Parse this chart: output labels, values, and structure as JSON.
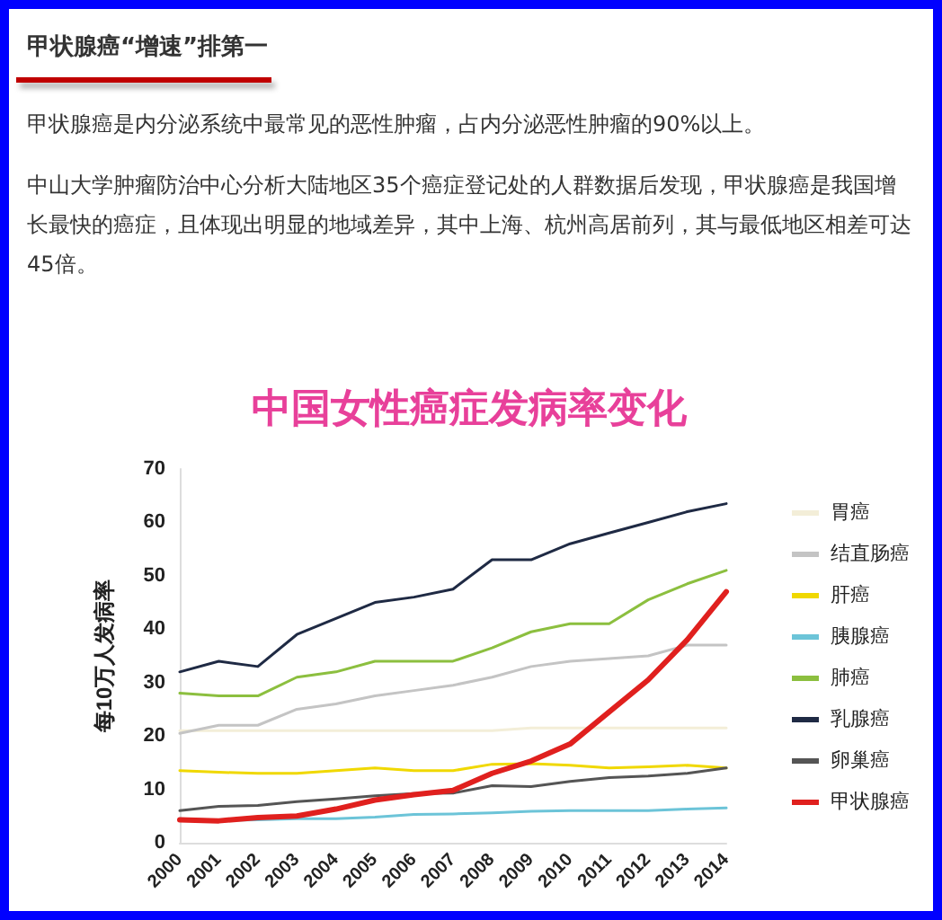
{
  "chart_data": {
    "type": "line",
    "title": "中国女性癌症发病率变化",
    "ylabel": "每10万人发病率",
    "annotations": [
      "甲状腺癌“增速”排第一",
      "甲状腺癌是内分泌系统中最常见的恶性肿瘤，占内分泌恶性肿瘤的90%以上。",
      "中山大学肿瘤防治中心分析大陆地区35个癌症登记处的人群数据后发现，甲状腺癌是我国增长最快的癌症，且体现出明显的地域差异，其中上海、杭州高居前列，其与最低地区相差可达45倍。"
    ],
    "categories": [
      "2000",
      "2001",
      "2002",
      "2003",
      "2004",
      "2005",
      "2006",
      "2007",
      "2008",
      "2009",
      "2010",
      "2011",
      "2012",
      "2013",
      "2014"
    ],
    "series": [
      {
        "name": "胃癌",
        "color": "#f3eed8",
        "values": [
          21,
          21,
          21,
          21,
          21,
          21,
          21,
          21,
          21,
          21.5,
          21.5,
          21.5,
          21.5,
          21.5,
          21.5
        ]
      },
      {
        "name": "结直肠癌",
        "color": "#c4c4c4",
        "values": [
          20.5,
          22,
          22,
          25,
          26,
          27.5,
          28.5,
          29.5,
          31,
          33,
          34,
          34.5,
          35,
          37,
          37
        ]
      },
      {
        "name": "肝癌",
        "color": "#f0d800",
        "values": [
          13.5,
          13.2,
          13,
          13,
          13.5,
          14,
          13.5,
          13.5,
          14.7,
          14.8,
          14.5,
          14,
          14.2,
          14.5,
          14
        ]
      },
      {
        "name": "胰腺癌",
        "color": "#6cc4d8",
        "values": [
          4.5,
          4.2,
          4.3,
          4.5,
          4.5,
          4.8,
          5.3,
          5.4,
          5.6,
          5.9,
          6,
          6,
          6,
          6.3,
          6.5
        ]
      },
      {
        "name": "肺癌",
        "color": "#8cbf3f",
        "values": [
          28,
          27.5,
          27.5,
          31,
          32,
          34,
          34,
          34,
          36.5,
          39.5,
          41,
          41,
          45.5,
          48.5,
          51
        ]
      },
      {
        "name": "乳腺癌",
        "color": "#1f2a44",
        "values": [
          32,
          34,
          33,
          39,
          42,
          45,
          46,
          47.5,
          53,
          53,
          56,
          58,
          60,
          62,
          63.5
        ]
      },
      {
        "name": "卵巢癌",
        "color": "#555555",
        "values": [
          6,
          6.8,
          7,
          7.7,
          8.2,
          8.8,
          9.2,
          9.3,
          10.7,
          10.5,
          11.5,
          12.2,
          12.5,
          13,
          14
        ]
      },
      {
        "name": "甲状腺癌",
        "color": "#e0201e",
        "values": [
          4.3,
          4.1,
          4.7,
          5,
          6.3,
          8,
          9,
          9.8,
          13,
          15.3,
          18.5,
          24.5,
          30.5,
          38,
          47
        ]
      }
    ],
    "ylim": [
      0,
      70
    ],
    "yticks": [
      0,
      10,
      20,
      30,
      40,
      50,
      60,
      70
    ],
    "grid": false,
    "legend": "right",
    "marker": "none",
    "line_style": "solid"
  }
}
